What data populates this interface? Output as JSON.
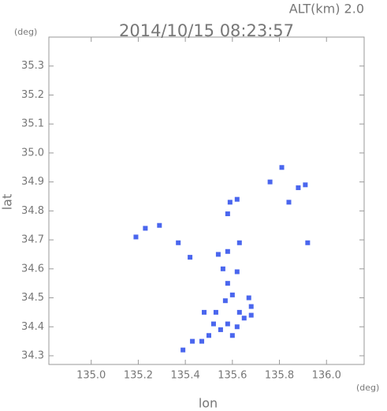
{
  "chart_data": {
    "type": "scatter",
    "title": "2014/10/15 08:23:57",
    "annotation": "ALT(km) 2.0",
    "xlabel": "lon",
    "ylabel": "lat",
    "x_unit": "(deg)",
    "y_unit": "(deg)",
    "xlim": [
      134.82,
      136.16
    ],
    "ylim": [
      34.27,
      35.4
    ],
    "xticks": [
      {
        "value": 135.0,
        "label": "135.0"
      },
      135.2,
      135.4,
      135.6,
      135.8,
      {
        "value": 136.0,
        "label": "136.0"
      }
    ],
    "yticks": [
      34.3,
      34.4,
      34.5,
      34.6,
      34.7,
      34.8,
      34.9,
      {
        "value": 35.0,
        "label": "35.0"
      },
      35.1,
      35.2,
      35.3
    ],
    "series": [
      {
        "color": "#4a66ee",
        "x": [
          135.81,
          135.76,
          135.88,
          135.91,
          135.84,
          135.59,
          135.62,
          135.58,
          135.23,
          135.29,
          135.19,
          135.37,
          135.92,
          135.42,
          135.54,
          135.58,
          135.63,
          135.56,
          135.62,
          135.58,
          135.6,
          135.57,
          135.67,
          135.68,
          135.68,
          135.63,
          135.48,
          135.52,
          135.58,
          135.62,
          135.65,
          135.55,
          135.5,
          135.47,
          135.43,
          135.39,
          135.6,
          135.53
        ],
        "y": [
          34.95,
          34.9,
          34.88,
          34.89,
          34.83,
          34.83,
          34.84,
          34.79,
          34.74,
          34.75,
          34.71,
          34.69,
          34.69,
          34.64,
          34.65,
          34.66,
          34.69,
          34.6,
          34.59,
          34.55,
          34.51,
          34.49,
          34.5,
          34.47,
          34.44,
          34.45,
          34.45,
          34.41,
          34.41,
          34.4,
          34.43,
          34.39,
          34.37,
          34.35,
          34.35,
          34.32,
          34.37,
          34.45
        ]
      }
    ]
  }
}
